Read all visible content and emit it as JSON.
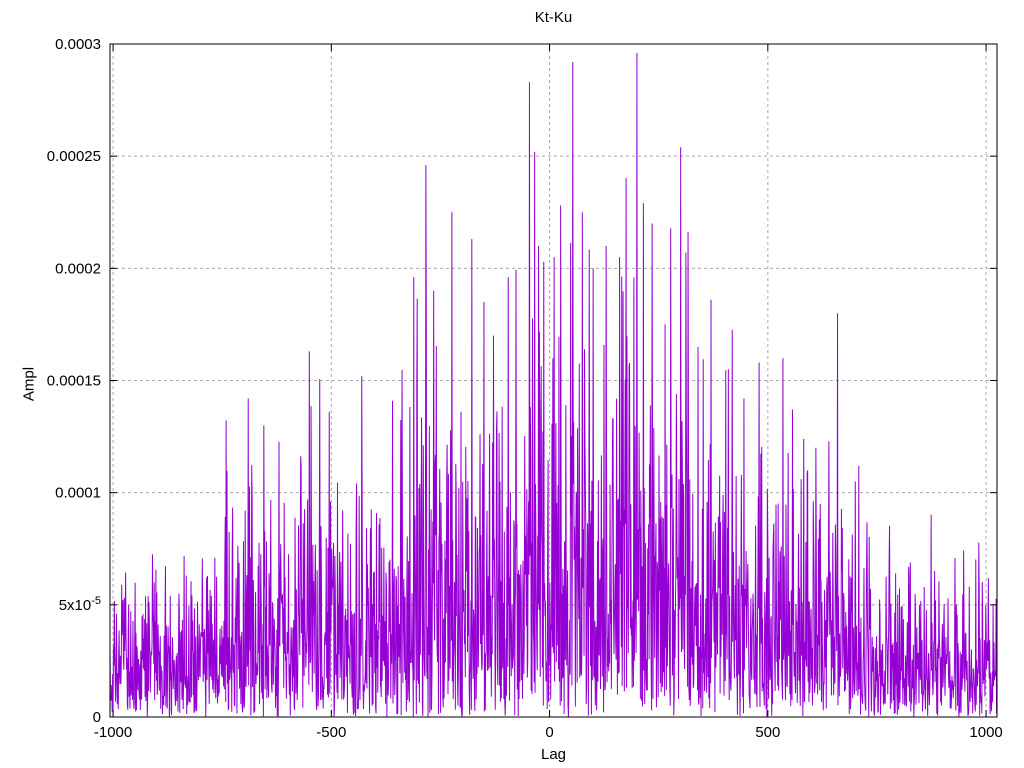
{
  "window": {
    "background_color": "#ffffff"
  },
  "chart_data": {
    "type": "line",
    "title": "Kt-Ku",
    "xlabel": "Lag",
    "ylabel": "Ampl",
    "series_name": "Kt-Ku",
    "legend": "none",
    "grid": true,
    "line_color": "#9400d3",
    "grid_color": "#ababab",
    "axis_color": "#000000",
    "xlim": [
      -1007,
      1025
    ],
    "ylim": [
      0,
      0.0003
    ],
    "xticks": [
      -1000,
      -500,
      0,
      500,
      1000
    ],
    "xtick_labels": [
      "-1000",
      "-500",
      "0",
      "500",
      "1000"
    ],
    "yticks": [
      0,
      5e-05,
      0.0001,
      0.00015,
      0.0002,
      0.00025,
      0.0003
    ],
    "ytick_labels": [
      "0",
      "5x10^-5",
      "0.0001",
      "0.00015",
      "0.0002",
      "0.00025",
      "0.0003"
    ],
    "n_points": 2048,
    "seed": 20240917,
    "noise_sigma_ratio": 0.34,
    "envelope": [
      [
        -1007,
        8e-05
      ],
      [
        -950,
        9e-05
      ],
      [
        -900,
        9.2e-05
      ],
      [
        -850,
        9.6e-05
      ],
      [
        -800,
        0.000105
      ],
      [
        -750,
        0.00013
      ],
      [
        -700,
        0.000142
      ],
      [
        -650,
        0.000135
      ],
      [
        -600,
        0.00013
      ],
      [
        -550,
        0.00016
      ],
      [
        -500,
        0.00014
      ],
      [
        -450,
        0.00015
      ],
      [
        -400,
        0.00015
      ],
      [
        -350,
        0.000145
      ],
      [
        -300,
        0.0002
      ],
      [
        -250,
        0.00019
      ],
      [
        -200,
        0.00021
      ],
      [
        -150,
        0.00019
      ],
      [
        -100,
        0.0002
      ],
      [
        -50,
        0.000255
      ],
      [
        0,
        0.000245
      ],
      [
        50,
        0.000265
      ],
      [
        100,
        0.00022
      ],
      [
        150,
        0.00022
      ],
      [
        200,
        0.00026
      ],
      [
        250,
        0.00023
      ],
      [
        300,
        0.00023
      ],
      [
        350,
        0.00019
      ],
      [
        400,
        0.00018
      ],
      [
        450,
        0.00016
      ],
      [
        500,
        0.00016
      ],
      [
        550,
        0.00015
      ],
      [
        600,
        0.00013
      ],
      [
        650,
        0.000145
      ],
      [
        700,
        0.000115
      ],
      [
        750,
        0.00011
      ],
      [
        800,
        0.0001
      ],
      [
        850,
        9.5e-05
      ],
      [
        900,
        8.5e-05
      ],
      [
        950,
        8e-05
      ],
      [
        1025,
        7.5e-05
      ]
    ],
    "peaks": [
      [
        -690,
        0.000142
      ],
      [
        -655,
        0.00013
      ],
      [
        -550,
        0.000163
      ],
      [
        -505,
        0.000136
      ],
      [
        -430,
        0.000152
      ],
      [
        -360,
        0.000141
      ],
      [
        -311,
        0.000196
      ],
      [
        -283,
        0.000246
      ],
      [
        -265,
        0.00019
      ],
      [
        -224,
        0.000225
      ],
      [
        -178,
        0.000213
      ],
      [
        -150,
        0.000185
      ],
      [
        -128,
        0.00017
      ],
      [
        -95,
        0.000196
      ],
      [
        -46,
        0.000283
      ],
      [
        -25,
        0.00021
      ],
      [
        10,
        0.000205
      ],
      [
        25,
        0.000228
      ],
      [
        53,
        0.000292
      ],
      [
        75,
        0.000225
      ],
      [
        100,
        0.0002
      ],
      [
        130,
        0.00021
      ],
      [
        160,
        0.000205
      ],
      [
        200,
        0.000296
      ],
      [
        215,
        0.000229
      ],
      [
        235,
        0.00022
      ],
      [
        265,
        0.000175
      ],
      [
        300,
        0.000254
      ],
      [
        312,
        0.000207
      ],
      [
        340,
        0.000165
      ],
      [
        370,
        0.000186
      ],
      [
        410,
        0.000155
      ],
      [
        445,
        0.000142
      ],
      [
        480,
        0.000158
      ],
      [
        535,
        0.00016
      ],
      [
        582,
        0.000124
      ],
      [
        610,
        0.00012
      ],
      [
        660,
        0.00018
      ],
      [
        700,
        0.000105
      ]
    ]
  }
}
